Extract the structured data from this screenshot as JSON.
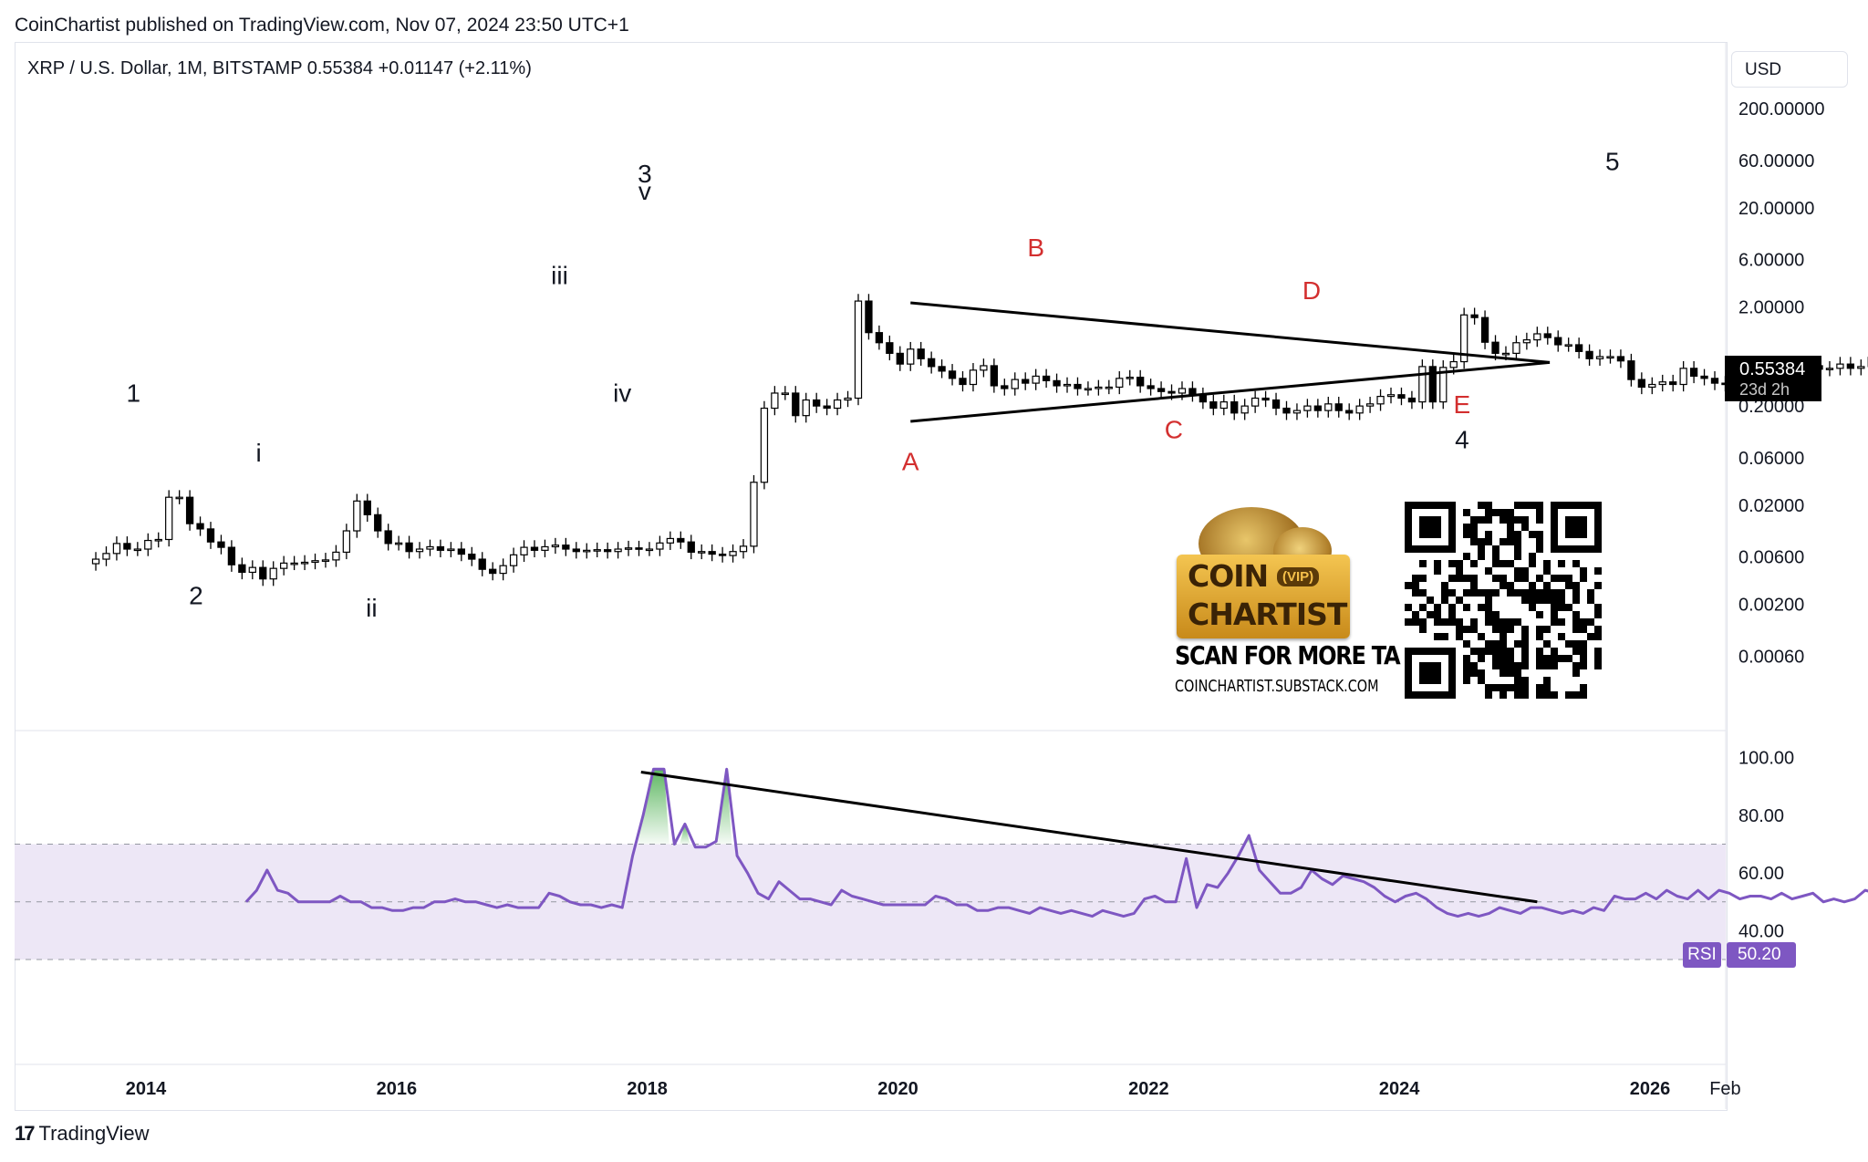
{
  "header": {
    "published": "CoinChartist published on TradingView.com, Nov 07, 2024 23:50 UTC+1"
  },
  "symbol_info": {
    "text": "XRP / U.S. Dollar, 1M, BITSTAMP  0.55384  +0.01147 (+2.11%)"
  },
  "currency_button": "USD",
  "price_tag": {
    "price": "0.55384",
    "countdown": "23d 2h"
  },
  "rsi_tag": {
    "name": "RSI",
    "value": "50.20"
  },
  "branding": {
    "badge_line1": "COIN",
    "badge_vip": "(VIP)",
    "badge_line2": "CHARTIST",
    "scan_text": "SCAN FOR MORE TA",
    "site_text": "COINCHARTIST.SUBSTACK.COM",
    "tv_logo_text": "TradingView"
  },
  "colors": {
    "rsi_line": "#7e57c2",
    "rsi_band": "#ede7f6",
    "wave_label_red": "#d32f2f",
    "price_tag_bg": "#000000"
  },
  "chart_data": [
    {
      "type": "candlestick",
      "title": "XRP / U.S. Dollar, 1M, BITSTAMP",
      "scale": "log",
      "y_tick_labels": [
        "200.00000",
        "60.00000",
        "20.00000",
        "6.00000",
        "2.00000",
        "0.20000",
        "0.06000",
        "0.02000",
        "0.00600",
        "0.00200",
        "0.00060"
      ],
      "y_ticks": [
        200,
        60,
        20,
        6,
        2,
        0.2,
        0.06,
        0.02,
        0.006,
        0.002,
        0.0006
      ],
      "ylim": [
        0.0003,
        300
      ],
      "x_tick_labels": [
        "2014",
        "2016",
        "2018",
        "2020",
        "2022",
        "2024",
        "2026",
        "Feb"
      ],
      "x_ticks": [
        2014,
        2016,
        2018,
        2020,
        2022,
        2024,
        2026,
        2026.6
      ],
      "xlim": [
        2012.5,
        2026.9
      ],
      "last_price": 0.55384,
      "close_series": {
        "start": 2013.6,
        "step_months": 1,
        "values": [
          0.0057,
          0.0065,
          0.0082,
          0.0072,
          0.0072,
          0.0088,
          0.009,
          0.024,
          0.024,
          0.013,
          0.0115,
          0.0085,
          0.0075,
          0.005,
          0.0042,
          0.0047,
          0.0036,
          0.0046,
          0.0052,
          0.0052,
          0.0053,
          0.0055,
          0.0056,
          0.0067,
          0.011,
          0.022,
          0.016,
          0.011,
          0.0082,
          0.0083,
          0.0068,
          0.0072,
          0.0076,
          0.007,
          0.0072,
          0.0064,
          0.0057,
          0.0045,
          0.0041,
          0.0049,
          0.0063,
          0.0075,
          0.007,
          0.0076,
          0.0079,
          0.0072,
          0.0068,
          0.007,
          0.0071,
          0.0068,
          0.0072,
          0.0074,
          0.0072,
          0.0072,
          0.0083,
          0.0092,
          0.0085,
          0.0067,
          0.0068,
          0.0064,
          0.0062,
          0.0068,
          0.0077,
          0.034,
          0.19,
          0.27,
          0.27,
          0.16,
          0.23,
          0.2,
          0.19,
          0.23,
          0.24,
          2.29,
          1.1,
          0.87,
          0.68,
          0.53,
          0.75,
          0.6,
          0.5,
          0.45,
          0.38,
          0.33,
          0.46,
          0.51,
          0.32,
          0.3,
          0.37,
          0.34,
          0.4,
          0.36,
          0.32,
          0.33,
          0.3,
          0.3,
          0.31,
          0.31,
          0.38,
          0.39,
          0.32,
          0.3,
          0.28,
          0.27,
          0.3,
          0.26,
          0.22,
          0.19,
          0.22,
          0.17,
          0.2,
          0.24,
          0.23,
          0.19,
          0.17,
          0.18,
          0.2,
          0.18,
          0.21,
          0.18,
          0.17,
          0.2,
          0.21,
          0.25,
          0.26,
          0.24,
          0.22,
          0.5,
          0.22,
          0.49,
          0.56,
          1.66,
          1.56,
          0.88,
          0.68,
          0.68,
          0.87,
          0.93,
          1.07,
          0.98,
          0.83,
          0.83,
          0.71,
          0.6,
          0.63,
          0.63,
          0.57,
          0.37,
          0.31,
          0.33,
          0.35,
          0.33,
          0.48,
          0.4,
          0.38,
          0.34,
          0.33,
          0.45,
          0.34,
          0.37,
          0.36,
          0.38,
          0.38,
          0.47,
          0.51,
          0.47,
          0.48,
          0.53,
          0.48,
          0.5,
          0.62,
          0.53,
          0.5,
          0.52,
          0.48,
          0.47,
          0.52,
          0.5,
          0.48,
          0.56,
          0.55,
          0.56,
          0.54,
          0.52,
          0.5,
          0.48,
          0.55384
        ]
      },
      "wave_labels": [
        {
          "text": "1",
          "x": 2013.9,
          "y": 0.22
        },
        {
          "text": "2",
          "x": 2014.4,
          "y": 0.002
        },
        {
          "text": "i",
          "x": 2014.9,
          "y": 0.055
        },
        {
          "text": "ii",
          "x": 2015.8,
          "y": 0.0015
        },
        {
          "text": "iii",
          "x": 2017.3,
          "y": 3.4
        },
        {
          "text": "iv",
          "x": 2017.8,
          "y": 0.22
        },
        {
          "text": "v",
          "x": 2017.98,
          "y": 24
        },
        {
          "text": "3",
          "x": 2017.98,
          "y": 36
        },
        {
          "text": "A",
          "x": 2020.1,
          "y": 0.045,
          "color": "red"
        },
        {
          "text": "B",
          "x": 2021.1,
          "y": 6.5,
          "color": "red"
        },
        {
          "text": "C",
          "x": 2022.2,
          "y": 0.095,
          "color": "red"
        },
        {
          "text": "D",
          "x": 2023.3,
          "y": 2.4,
          "color": "red"
        },
        {
          "text": "E",
          "x": 2024.5,
          "y": 0.17,
          "color": "red"
        },
        {
          "text": "4",
          "x": 2024.5,
          "y": 0.075
        },
        {
          "text": "5",
          "x": 2025.7,
          "y": 48
        }
      ],
      "trendlines": [
        {
          "from": [
            2020.1,
            2.2
          ],
          "to": [
            2025.2,
            0.55
          ]
        },
        {
          "from": [
            2020.1,
            0.14
          ],
          "to": [
            2025.2,
            0.55
          ]
        }
      ]
    },
    {
      "type": "line",
      "series_name": "RSI",
      "y_tick_labels": [
        "100.00",
        "80.00",
        "60.00",
        "40.00"
      ],
      "y_ticks": [
        100,
        80,
        60,
        40
      ],
      "ylim": [
        18,
        104
      ],
      "band": [
        30,
        70
      ],
      "midline": 50,
      "last_value": 50.2,
      "series": {
        "start": 2014.8,
        "step_months": 1,
        "values": [
          50,
          54,
          61,
          54,
          53,
          50,
          50,
          50,
          50,
          52,
          50,
          50,
          48,
          48,
          47,
          47,
          48,
          48,
          50,
          50,
          51,
          50,
          50,
          49,
          48,
          49,
          48,
          48,
          48,
          53,
          52,
          50,
          49,
          49,
          48,
          49,
          48,
          66,
          80,
          96,
          96,
          70,
          77,
          69,
          69,
          71,
          96,
          66,
          60,
          53,
          51,
          57,
          54,
          51,
          51,
          50,
          49,
          54,
          52,
          51,
          50,
          49,
          49,
          49,
          49,
          49,
          52,
          51,
          49,
          49,
          47,
          47,
          48,
          48,
          47,
          46,
          48,
          47,
          46,
          47,
          46,
          45,
          47,
          46,
          45,
          46,
          51,
          52,
          50,
          50,
          65,
          48,
          56,
          55,
          60,
          66,
          73,
          61,
          57,
          53,
          53,
          55,
          61,
          58,
          56,
          59,
          58,
          57,
          55,
          52,
          50,
          52,
          53,
          51,
          48,
          46,
          45,
          46,
          45,
          46,
          48,
          47,
          46,
          48,
          48,
          47,
          46,
          47,
          46,
          48,
          47,
          52,
          51,
          51,
          53,
          51,
          54,
          52,
          51,
          54,
          51,
          54,
          53,
          51,
          52,
          52,
          51,
          53,
          51,
          52,
          53,
          50,
          51,
          50,
          51,
          54,
          53,
          50,
          50,
          53
        ]
      },
      "trendline": {
        "from": [
          2017.95,
          95
        ],
        "to": [
          2025.1,
          50
        ]
      }
    }
  ]
}
